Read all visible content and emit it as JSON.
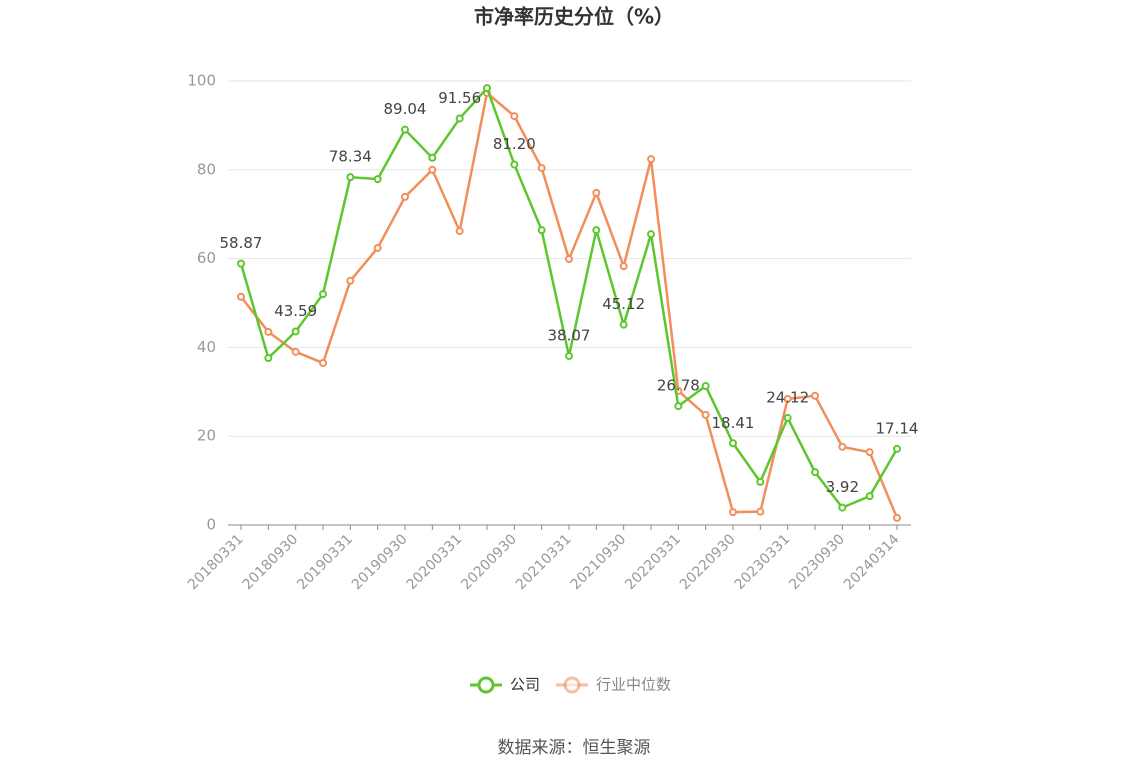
{
  "chart_data": {
    "type": "line",
    "title": "市净率历史分位（%）",
    "categories": [
      "20180331",
      null,
      "20180930",
      null,
      "20190331",
      null,
      "20190930",
      null,
      "20200331",
      null,
      "20200930",
      null,
      "20210331",
      null,
      "20210930",
      null,
      "20220331",
      null,
      "20220930",
      null,
      "20230331",
      null,
      "20230930",
      null,
      "20240314"
    ],
    "series": [
      {
        "name": "公司",
        "color": "#5cc72c",
        "values": [
          58.87,
          37.6,
          43.59,
          52.0,
          78.34,
          77.9,
          89.04,
          82.7,
          91.56,
          98.4,
          81.2,
          66.4,
          38.07,
          66.4,
          45.12,
          65.5,
          26.78,
          31.3,
          18.41,
          9.7,
          24.12,
          11.9,
          3.92,
          6.5,
          17.14
        ],
        "value_labels": [
          "58.87",
          null,
          "43.59",
          null,
          "78.34",
          null,
          "89.04",
          null,
          "91.56",
          null,
          "81.20",
          null,
          "38.07",
          null,
          "45.12",
          null,
          "26.78",
          null,
          "18.41",
          null,
          "24.12",
          null,
          "3.92",
          null,
          "17.14"
        ]
      },
      {
        "name": "行业中位数",
        "color": "#f28e5b",
        "values": [
          51.4,
          43.5,
          39.0,
          36.5,
          55.0,
          62.4,
          73.9,
          80.0,
          66.2,
          97.3,
          92.1,
          80.4,
          59.9,
          74.8,
          58.3,
          82.4,
          30.2,
          24.8,
          2.9,
          3.0,
          28.4,
          29.1,
          17.6,
          16.4,
          1.6
        ]
      }
    ],
    "ylim": [
      0,
      100
    ],
    "yticks": [
      0,
      20,
      40,
      60,
      80,
      100
    ],
    "grid": true,
    "source": "数据来源：恒生聚源"
  }
}
